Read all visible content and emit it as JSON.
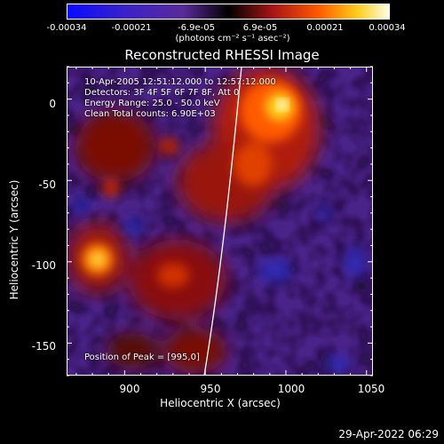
{
  "colorbar": {
    "ticks": [
      "-0.00034",
      "-0.00021",
      "-6.9e-05",
      "6.9e-05",
      "0.00021",
      "0.00034"
    ],
    "units": "(photons cm⁻² s⁻¹ asec⁻²)",
    "range": [
      -0.00034,
      0.00034
    ]
  },
  "plot": {
    "title": "Reconstructed RHESSI Image",
    "info_lines": [
      "10-Apr-2005 12:51:12.000 to 12:57:12.000",
      "Detectors: 3F 4F 5F 6F 7F 8F, Att 0",
      "Energy Range: 25.0 - 50.0 keV",
      "Clean     Total counts: 6.90E+03"
    ],
    "peak_label": "Position of Peak = [995,0]",
    "xlabel": "Heliocentric X (arcsec)",
    "ylabel": "Heliocentric Y (arcsec)",
    "xticks": [
      "900",
      "950",
      "1000",
      "1050"
    ],
    "yticks": [
      "0",
      "-50",
      "-100",
      "-150"
    ],
    "xlim": [
      864,
      1054
    ],
    "ylim": [
      -170,
      20
    ]
  },
  "footer": {
    "timestamp": "29-Apr-2022 06:29"
  },
  "colors": {
    "background": "#000000",
    "frame": "#ffffff",
    "limb": "#ffffff"
  }
}
